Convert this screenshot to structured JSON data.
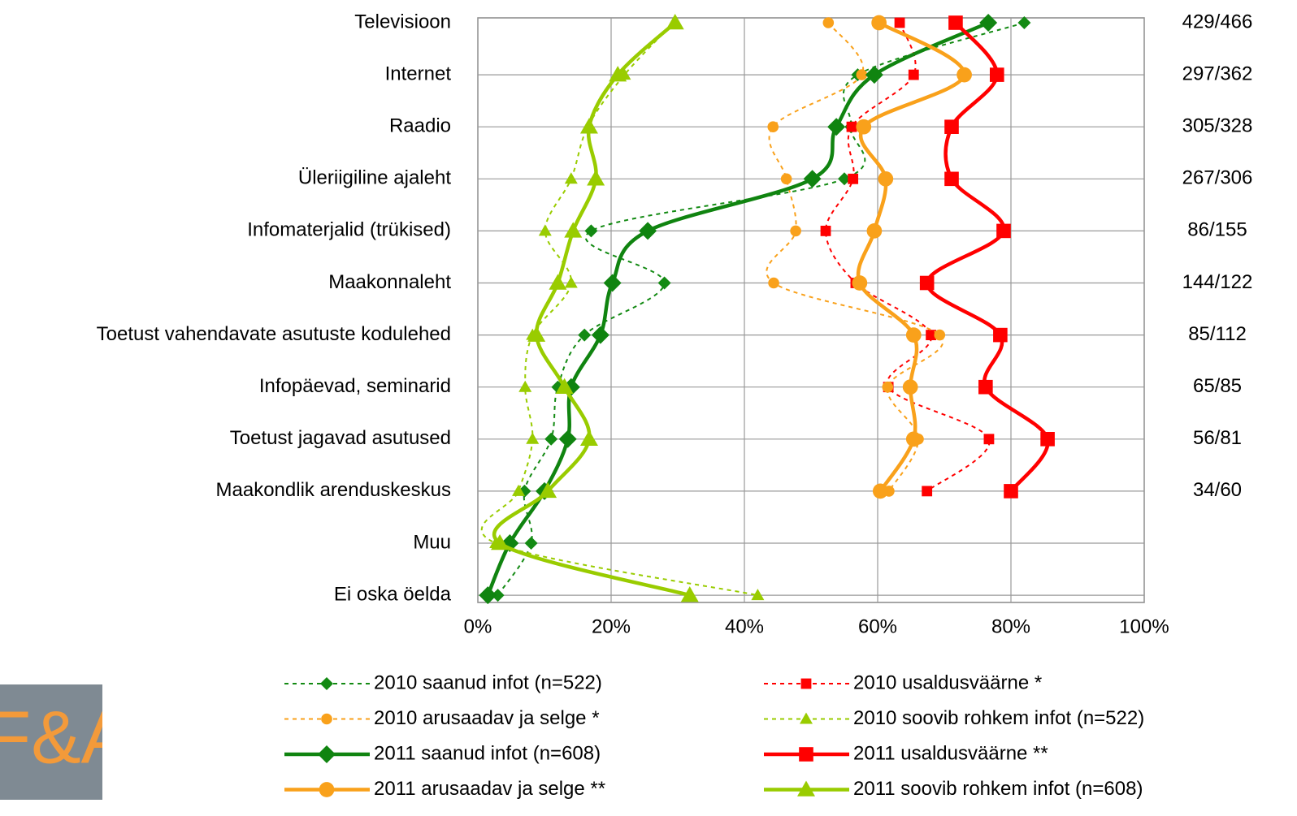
{
  "chart_data": {
    "type": "line",
    "categories": [
      "Televisioon",
      "Internet",
      "Raadio",
      "Üleriigiline ajaleht",
      "Infomaterjalid (trükised)",
      "Maakonnaleht",
      "Toetust vahendavate asutuste kodulehed",
      "Infopäevad, seminarid",
      "Toetust jagavad asutused",
      "Maakondlik arenduskeskus",
      "Muu",
      "Ei oska öelda"
    ],
    "right_labels": [
      "429/466",
      "297/362",
      "305/328",
      "267/306",
      "86/155",
      "144/122",
      "85/112",
      "65/85",
      "56/81",
      "34/60",
      null,
      null
    ],
    "xlim": [
      0,
      100
    ],
    "xticks": [
      {
        "value": 0,
        "label": "0%"
      },
      {
        "value": 20,
        "label": "20%"
      },
      {
        "value": 40,
        "label": "40%"
      },
      {
        "value": 60,
        "label": "60%"
      },
      {
        "value": 80,
        "label": "80%"
      },
      {
        "value": 100,
        "label": "100%"
      }
    ],
    "grid": true,
    "series": [
      {
        "name": "2010 saanud infot (n=522)",
        "color": "#138a13",
        "style": "dotted",
        "marker": "diamond",
        "values": [
          82,
          57,
          56,
          55,
          17,
          28,
          16,
          12,
          11,
          7,
          8,
          3
        ]
      },
      {
        "name": "2010 usaldusväärne *",
        "color": "#ff0000",
        "style": "dotted",
        "marker": "square",
        "values": [
          63.3,
          65.4,
          56.1,
          56.3,
          52.2,
          56.7,
          68,
          61.6,
          76.7,
          67.4,
          null,
          null
        ]
      },
      {
        "name": "2010 arusaadav ja selge *",
        "color": "#f9a11b",
        "style": "dotted",
        "marker": "circle",
        "values": [
          52.6,
          57.6,
          44.3,
          46.3,
          47.7,
          44.4,
          69.3,
          61.5,
          66.1,
          61.7,
          null,
          null
        ]
      },
      {
        "name": "2010 soovib rohkem infot (n=522)",
        "color": "#99cc00",
        "style": "dotted",
        "marker": "triangle",
        "values": [
          29.4,
          22,
          16.5,
          14,
          10.1,
          14,
          8.2,
          7.1,
          8.2,
          6.1,
          2.7,
          42
        ]
      },
      {
        "name": "2011 saanud infot (n=608)",
        "color": "#108410",
        "style": "solid",
        "marker": "diamond",
        "values": [
          76.6,
          59.5,
          53.8,
          50.2,
          25.5,
          20.2,
          18.4,
          14,
          13.5,
          10,
          4.8,
          1.5
        ]
      },
      {
        "name": "2011 usaldusväärne **",
        "color": "#ff0000",
        "style": "solid",
        "marker": "square",
        "values": [
          71.7,
          77.9,
          71.1,
          71.1,
          78.9,
          67.4,
          78.4,
          76.2,
          85.5,
          80,
          null,
          null
        ]
      },
      {
        "name": "2011 arusaadav ja selge **",
        "color": "#f9a11b",
        "style": "solid",
        "marker": "circle",
        "values": [
          60.2,
          73,
          57.9,
          61.2,
          59.5,
          57.3,
          65.4,
          64.9,
          65.4,
          60.4,
          null,
          null
        ]
      },
      {
        "name": "2011 soovib rohkem infot (n=608)",
        "color": "#99cc00",
        "style": "solid",
        "marker": "triangle",
        "values": [
          29.6,
          21,
          16.7,
          17.7,
          14.3,
          12,
          8.8,
          13,
          16.7,
          10.5,
          3.3,
          31.8
        ]
      }
    ]
  },
  "logo": "F&A"
}
